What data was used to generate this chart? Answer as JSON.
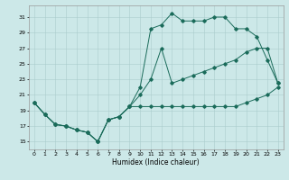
{
  "xlabel": "Humidex (Indice chaleur)",
  "xlim": [
    -0.5,
    23.5
  ],
  "ylim": [
    14,
    32.5
  ],
  "yticks": [
    15,
    17,
    19,
    21,
    23,
    25,
    27,
    29,
    31
  ],
  "xticks": [
    0,
    1,
    2,
    3,
    4,
    5,
    6,
    7,
    8,
    9,
    10,
    11,
    12,
    13,
    14,
    15,
    16,
    17,
    18,
    19,
    20,
    21,
    22,
    23
  ],
  "bg_color": "#cce8e8",
  "grid_color": "#aacccc",
  "line_color": "#1a6b5a",
  "line1_x": [
    0,
    1,
    2,
    3,
    4,
    5,
    6,
    7,
    8,
    9,
    10,
    11,
    12,
    13,
    14,
    15,
    16,
    17,
    18,
    19,
    20,
    21,
    22,
    23
  ],
  "line1_y": [
    20.0,
    18.5,
    17.2,
    17.0,
    16.5,
    16.2,
    15.0,
    17.8,
    18.2,
    19.5,
    19.5,
    19.5,
    19.5,
    19.5,
    19.5,
    19.5,
    19.5,
    19.5,
    19.5,
    19.5,
    20.0,
    20.5,
    21.0,
    22.0
  ],
  "line2_x": [
    0,
    1,
    2,
    3,
    4,
    5,
    6,
    7,
    8,
    9,
    10,
    11,
    12,
    13,
    14,
    15,
    16,
    17,
    18,
    19,
    20,
    21,
    22,
    23
  ],
  "line2_y": [
    20.0,
    18.5,
    17.2,
    17.0,
    16.5,
    16.2,
    15.0,
    17.8,
    18.2,
    19.5,
    21.0,
    23.0,
    27.0,
    22.5,
    23.0,
    23.5,
    24.0,
    24.5,
    25.0,
    25.5,
    26.5,
    27.0,
    27.0,
    22.5
  ],
  "line3_x": [
    0,
    1,
    2,
    3,
    4,
    5,
    6,
    7,
    8,
    9,
    10,
    11,
    12,
    13,
    14,
    15,
    16,
    17,
    18,
    19,
    20,
    21,
    22,
    23
  ],
  "line3_y": [
    20.0,
    18.5,
    17.2,
    17.0,
    16.5,
    16.2,
    15.0,
    17.8,
    18.2,
    19.5,
    22.0,
    29.5,
    30.0,
    31.5,
    30.5,
    30.5,
    30.5,
    31.0,
    31.0,
    29.5,
    29.5,
    28.5,
    25.5,
    22.5
  ]
}
